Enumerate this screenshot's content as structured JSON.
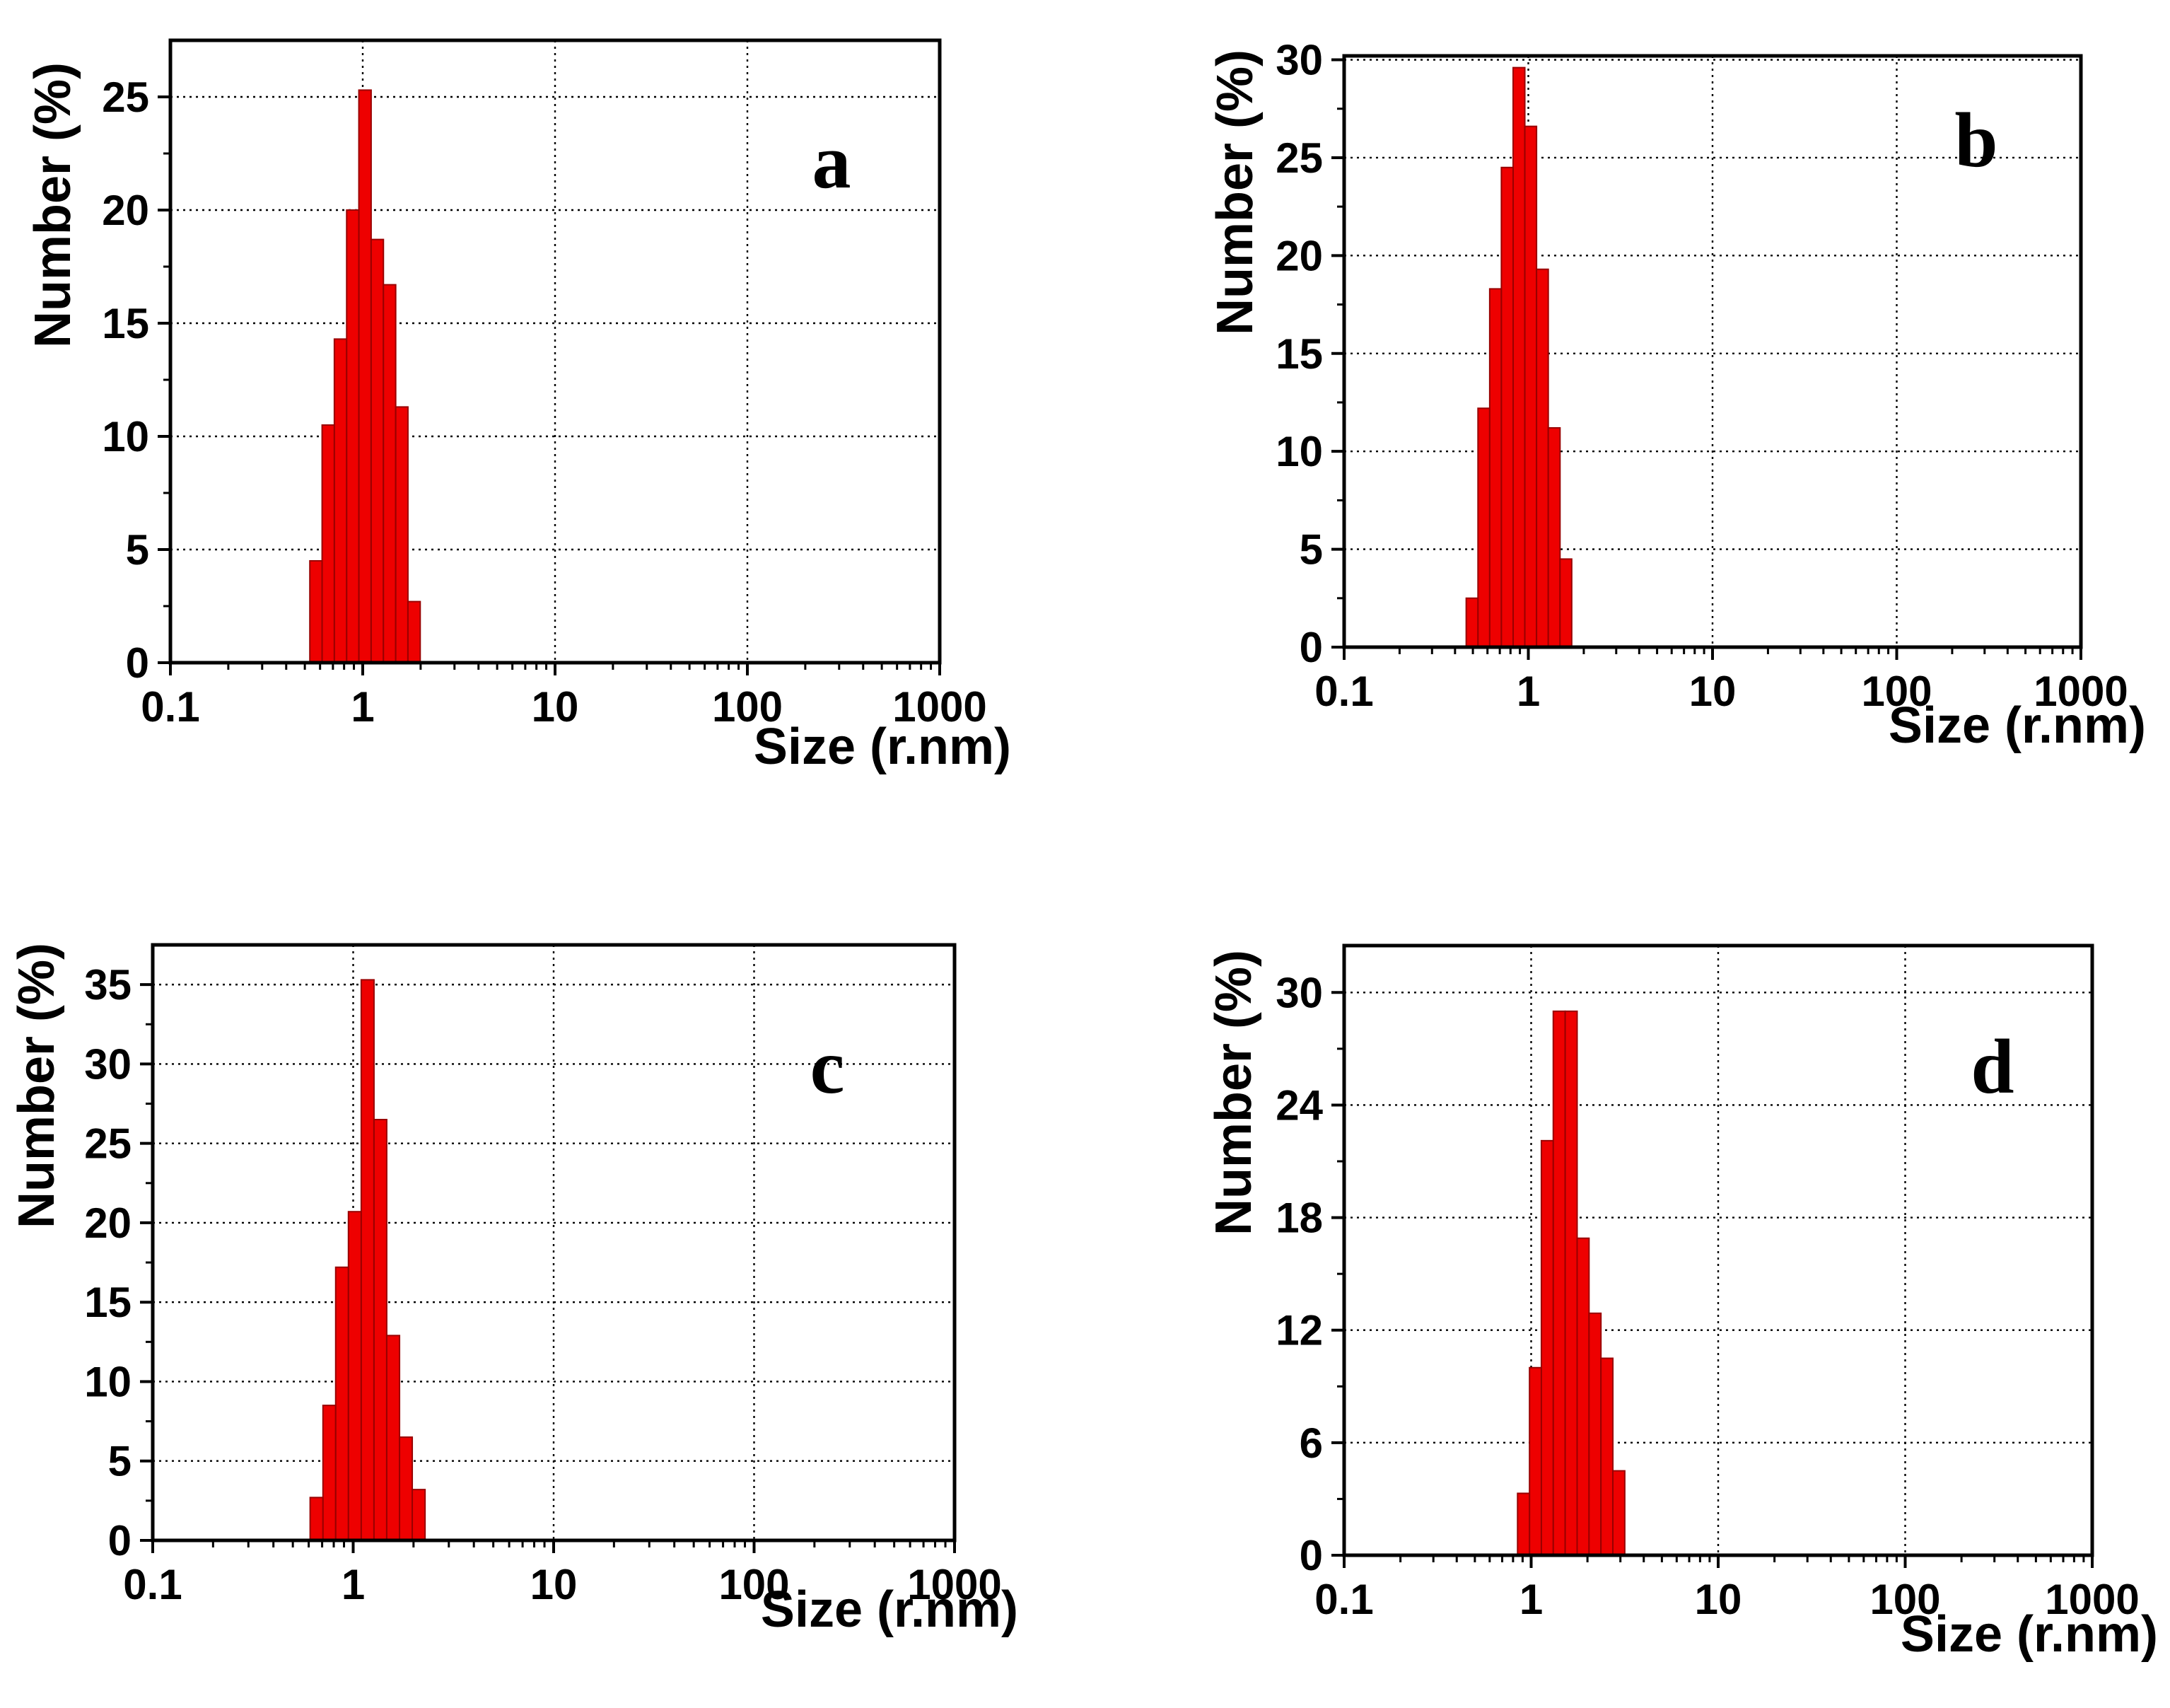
{
  "chart_data": [
    {
      "type": "bar",
      "panel": "a",
      "xlabel": "Size (r.nm)",
      "ylabel": "Number (%)",
      "x_scale": "log",
      "xlim": [
        0.1,
        1000
      ],
      "ylim": [
        0,
        27.5
      ],
      "x_ticks": [
        0.1,
        1,
        10,
        100,
        1000
      ],
      "x_tick_labels": [
        "0.1",
        "1",
        "10",
        "100",
        "1000"
      ],
      "y_ticks": [
        0,
        5,
        10,
        15,
        20,
        25
      ],
      "y_tick_labels": [
        "0",
        "5",
        "10",
        "15",
        "20",
        "25"
      ],
      "grid": true,
      "bar_color": "#ee0000",
      "bin_edges": [
        0.531,
        0.615,
        0.712,
        0.825,
        0.955,
        1.106,
        1.281,
        1.484,
        1.718,
        1.99
      ],
      "values": [
        4.5,
        10.5,
        14.3,
        20.0,
        25.3,
        18.7,
        16.7,
        11.3,
        2.7
      ]
    },
    {
      "type": "bar",
      "panel": "b",
      "xlabel": "Size (r.nm)",
      "ylabel": "Number (%)",
      "x_scale": "log",
      "xlim": [
        0.1,
        1000
      ],
      "ylim": [
        0,
        30.2
      ],
      "x_ticks": [
        0.1,
        1,
        10,
        100,
        1000
      ],
      "x_tick_labels": [
        "0.1",
        "1",
        "10",
        "100",
        "1000"
      ],
      "y_ticks": [
        0,
        5,
        10,
        15,
        20,
        25,
        30
      ],
      "y_tick_labels": [
        "0",
        "5",
        "10",
        "15",
        "20",
        "25",
        "30"
      ],
      "grid": true,
      "bar_color": "#ee0000",
      "bin_edges": [
        0.46,
        0.533,
        0.617,
        0.714,
        0.827,
        0.957,
        1.108,
        1.283,
        1.486,
        1.72
      ],
      "values": [
        2.5,
        12.2,
        18.3,
        24.5,
        29.6,
        26.6,
        19.3,
        11.2,
        4.5
      ]
    },
    {
      "type": "bar",
      "panel": "c",
      "xlabel": "Size (r.nm)",
      "ylabel": "Number (%)",
      "x_scale": "log",
      "xlim": [
        0.1,
        1000
      ],
      "ylim": [
        0,
        37.5
      ],
      "x_ticks": [
        0.1,
        1,
        10,
        100,
        1000
      ],
      "x_tick_labels": [
        "0.1",
        "1",
        "10",
        "100",
        "1000"
      ],
      "y_ticks": [
        0,
        5,
        10,
        15,
        20,
        25,
        30,
        35
      ],
      "y_tick_labels": [
        "0",
        "5",
        "10",
        "15",
        "20",
        "25",
        "30",
        "35"
      ],
      "grid": true,
      "bar_color": "#ee0000",
      "bin_edges": [
        0.61,
        0.707,
        0.818,
        0.947,
        1.097,
        1.27,
        1.47,
        1.703,
        1.971,
        2.283
      ],
      "values": [
        2.7,
        8.5,
        17.2,
        20.7,
        35.3,
        26.5,
        12.9,
        6.5,
        3.2
      ]
    },
    {
      "type": "bar",
      "panel": "d",
      "xlabel": "Size (r.nm)",
      "ylabel": "Number (%)",
      "x_scale": "log",
      "xlim": [
        0.1,
        1000
      ],
      "ylim": [
        0,
        32.5
      ],
      "x_ticks": [
        0.1,
        1,
        10,
        100,
        1000
      ],
      "x_tick_labels": [
        "0.1",
        "1",
        "10",
        "100",
        "1000"
      ],
      "y_ticks": [
        0,
        6,
        12,
        18,
        24,
        30
      ],
      "y_tick_labels": [
        "0",
        "6",
        "12",
        "18",
        "24",
        "30"
      ],
      "grid": true,
      "bar_color": "#ee0000",
      "bin_edges": [
        0.846,
        0.98,
        1.134,
        1.313,
        1.52,
        1.761,
        2.039,
        2.361,
        2.734,
        3.166
      ],
      "values": [
        3.3,
        10.0,
        22.1,
        29.0,
        29.0,
        16.9,
        12.9,
        10.5,
        4.5
      ]
    }
  ]
}
